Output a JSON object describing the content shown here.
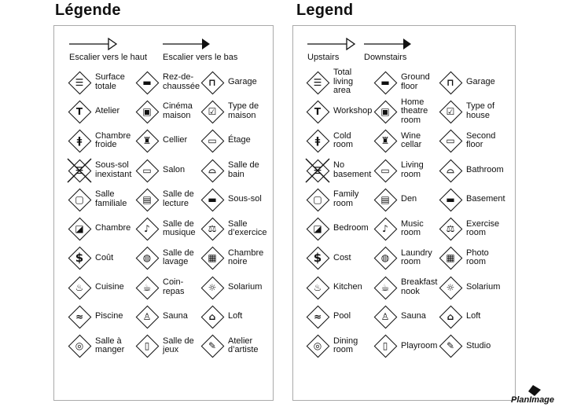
{
  "panels": [
    {
      "title": "Légende",
      "up": "Escalier vers le haut",
      "down": "Escalier vers le bas",
      "items": [
        {
          "label": "Surface\ntotale",
          "icon": "stacked-floors"
        },
        {
          "label": "Rez-de-\nchaussée",
          "icon": "ground-floor"
        },
        {
          "label": "Garage",
          "icon": "garage"
        },
        {
          "label": "Atelier",
          "icon": "hammer"
        },
        {
          "label": "Cinéma\nmaison",
          "icon": "projector"
        },
        {
          "label": "Type de\nmaison",
          "icon": "checkbox"
        },
        {
          "label": "Chambre\nfroide",
          "icon": "thermometer"
        },
        {
          "label": "Cellier",
          "icon": "wine"
        },
        {
          "label": "Étage",
          "icon": "upper-floor"
        },
        {
          "label": "Sous-sol\ninexistant",
          "icon": "no-basement"
        },
        {
          "label": "Salon",
          "icon": "sofa"
        },
        {
          "label": "Salle de\nbain",
          "icon": "sink"
        },
        {
          "label": "Salle\nfamiliale",
          "icon": "tv"
        },
        {
          "label": "Salle de\nlecture",
          "icon": "book"
        },
        {
          "label": "Sous-sol",
          "icon": "basement"
        },
        {
          "label": "Chambre",
          "icon": "bed"
        },
        {
          "label": "Salle de\nmusique",
          "icon": "music"
        },
        {
          "label": "Salle\nd’exercice",
          "icon": "dumbbell"
        },
        {
          "label": "Coût",
          "icon": "dollar"
        },
        {
          "label": "Salle de\nlavage",
          "icon": "laundry"
        },
        {
          "label": "Chambre\nnoire",
          "icon": "camera"
        },
        {
          "label": "Cuisine",
          "icon": "pot"
        },
        {
          "label": "Coin-\nrepas",
          "icon": "cup"
        },
        {
          "label": "Solarium",
          "icon": "sun"
        },
        {
          "label": "Piscine",
          "icon": "pool"
        },
        {
          "label": "Sauna",
          "icon": "sauna"
        },
        {
          "label": "Loft",
          "icon": "loft"
        },
        {
          "label": "Salle à\nmanger",
          "icon": "plate"
        },
        {
          "label": "Salle de\njeux",
          "icon": "game"
        },
        {
          "label": "Atelier\nd’artiste",
          "icon": "palette"
        }
      ]
    },
    {
      "title": "Legend",
      "up": "Upstairs",
      "down": "Downstairs",
      "items": [
        {
          "label": "Total\nliving\narea",
          "icon": "stacked-floors"
        },
        {
          "label": "Ground\nfloor",
          "icon": "ground-floor"
        },
        {
          "label": "Garage",
          "icon": "garage"
        },
        {
          "label": "Workshop",
          "icon": "hammer"
        },
        {
          "label": "Home\ntheatre\nroom",
          "icon": "projector"
        },
        {
          "label": "Type of\nhouse",
          "icon": "checkbox"
        },
        {
          "label": "Cold\nroom",
          "icon": "thermometer"
        },
        {
          "label": "Wine\ncellar",
          "icon": "wine"
        },
        {
          "label": "Second\nfloor",
          "icon": "upper-floor"
        },
        {
          "label": "No\nbasement",
          "icon": "no-basement"
        },
        {
          "label": "Living\nroom",
          "icon": "sofa"
        },
        {
          "label": "Bathroom",
          "icon": "sink"
        },
        {
          "label": "Family\nroom",
          "icon": "tv"
        },
        {
          "label": "Den",
          "icon": "book"
        },
        {
          "label": "Basement",
          "icon": "basement"
        },
        {
          "label": "Bedroom",
          "icon": "bed"
        },
        {
          "label": "Music\nroom",
          "icon": "music"
        },
        {
          "label": "Exercise\nroom",
          "icon": "dumbbell"
        },
        {
          "label": "Cost",
          "icon": "dollar"
        },
        {
          "label": "Laundry\nroom",
          "icon": "laundry"
        },
        {
          "label": "Photo\nroom",
          "icon": "camera"
        },
        {
          "label": "Kitchen",
          "icon": "pot"
        },
        {
          "label": "Breakfast\nnook",
          "icon": "cup"
        },
        {
          "label": "Solarium",
          "icon": "sun"
        },
        {
          "label": "Pool",
          "icon": "pool"
        },
        {
          "label": "Sauna",
          "icon": "sauna"
        },
        {
          "label": "Loft",
          "icon": "loft"
        },
        {
          "label": "Dining\nroom",
          "icon": "plate"
        },
        {
          "label": "Playroom",
          "icon": "game"
        },
        {
          "label": "Studio",
          "icon": "palette"
        }
      ]
    }
  ],
  "logo": "PlanImage"
}
